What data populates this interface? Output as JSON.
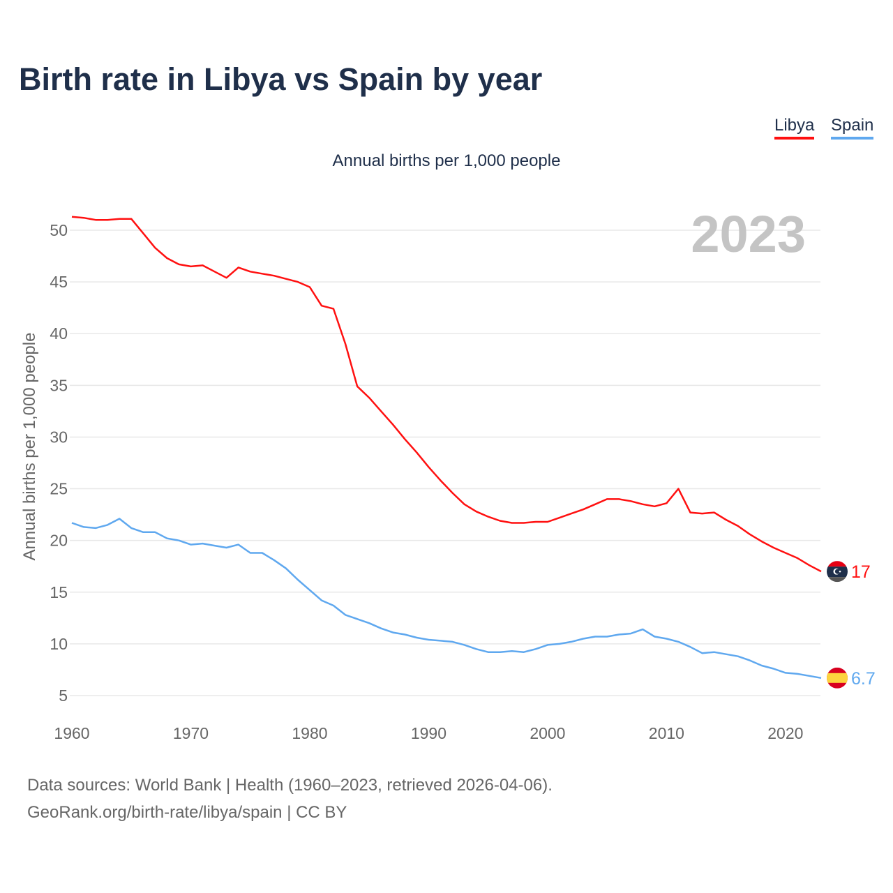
{
  "title": "Birth rate in Libya vs Spain by year",
  "subtitle": "Annual births per 1,000 people",
  "legend": [
    "Libya",
    "Spain"
  ],
  "footer": {
    "line1": "Data sources: World Bank | Health (1960–2023, retrieved 2026-04-06).",
    "line2": "GeoRank.org/birth-rate/libya/spain | CC BY"
  },
  "chart_data": {
    "type": "line",
    "title": "Birth rate in Libya vs Spain by year",
    "ylabel": "Annual births per 1,000 people",
    "xlabel": "",
    "year_label": "2023",
    "x_start": 1960,
    "x_end": 2023,
    "xticks": [
      1960,
      1970,
      1980,
      1990,
      2000,
      2010,
      2020
    ],
    "yticks": [
      5,
      10,
      15,
      20,
      25,
      30,
      35,
      40,
      45,
      50
    ],
    "ylim": [
      5,
      50
    ],
    "grid": true,
    "series": [
      {
        "name": "Libya",
        "color": "#ff1010",
        "end_label": "17",
        "flag": "libya-flag",
        "values": [
          51.3,
          51.2,
          51.0,
          51.0,
          51.1,
          51.1,
          49.7,
          48.3,
          47.3,
          46.7,
          46.5,
          46.6,
          46.0,
          45.4,
          46.4,
          46.0,
          45.8,
          45.6,
          45.3,
          45.0,
          44.5,
          42.7,
          42.4,
          39.0,
          34.9,
          33.8,
          32.5,
          31.2,
          29.8,
          28.5,
          27.1,
          25.8,
          24.6,
          23.5,
          22.8,
          22.3,
          21.9,
          21.7,
          21.7,
          21.8,
          21.8,
          22.2,
          22.6,
          23.0,
          23.5,
          24.0,
          24.0,
          23.8,
          23.5,
          23.3,
          23.6,
          25.0,
          22.7,
          22.6,
          22.7,
          22.0,
          21.4,
          20.6,
          19.9,
          19.3,
          18.8,
          18.3,
          17.6,
          17.0
        ]
      },
      {
        "name": "Spain",
        "color": "#5fa8ef",
        "end_label": "6.7",
        "flag": "spain-flag",
        "values": [
          21.7,
          21.3,
          21.2,
          21.5,
          22.1,
          21.2,
          20.8,
          20.8,
          20.2,
          20.0,
          19.6,
          19.7,
          19.5,
          19.3,
          19.6,
          18.8,
          18.8,
          18.1,
          17.3,
          16.2,
          15.2,
          14.2,
          13.7,
          12.8,
          12.4,
          12.0,
          11.5,
          11.1,
          10.9,
          10.6,
          10.4,
          10.3,
          10.2,
          9.9,
          9.5,
          9.2,
          9.2,
          9.3,
          9.2,
          9.5,
          9.9,
          10.0,
          10.2,
          10.5,
          10.7,
          10.7,
          10.9,
          11.0,
          11.4,
          10.7,
          10.5,
          10.2,
          9.7,
          9.1,
          9.2,
          9.0,
          8.8,
          8.4,
          7.9,
          7.6,
          7.2,
          7.1,
          6.9,
          6.7
        ]
      }
    ]
  }
}
